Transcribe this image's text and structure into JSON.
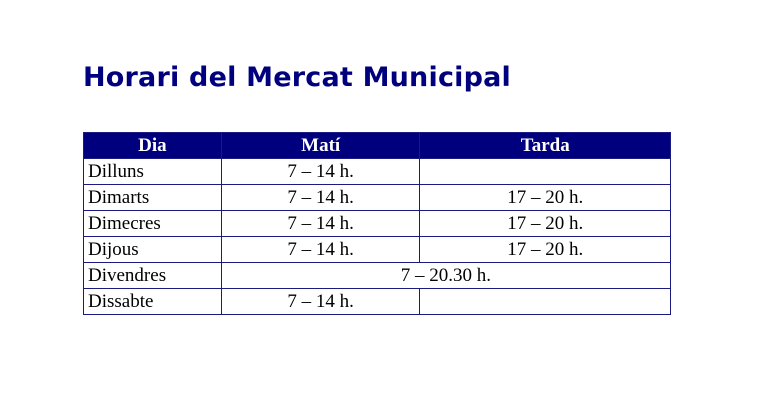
{
  "title": "Horari del Mercat Municipal",
  "colors": {
    "title": "#00007f",
    "header_bg": "#00007f",
    "border": "#1a1a80"
  },
  "table": {
    "headers": [
      "Dia",
      "Matí",
      "Tarda"
    ],
    "rows": [
      {
        "day": "Dilluns",
        "mati": "7 – 14 h.",
        "tarda": ""
      },
      {
        "day": "Dimarts",
        "mati": "7 – 14 h.",
        "tarda": "17 – 20 h."
      },
      {
        "day": "Dimecres",
        "mati": "7 – 14 h.",
        "tarda": "17 – 20 h."
      },
      {
        "day": "Dijous",
        "mati": "7 – 14 h.",
        "tarda": "17 – 20 h."
      },
      {
        "day": "Divendres",
        "full_day": "7 – 20.30 h."
      },
      {
        "day": "Dissabte",
        "mati": "7 – 14 h.",
        "tarda": ""
      }
    ]
  }
}
